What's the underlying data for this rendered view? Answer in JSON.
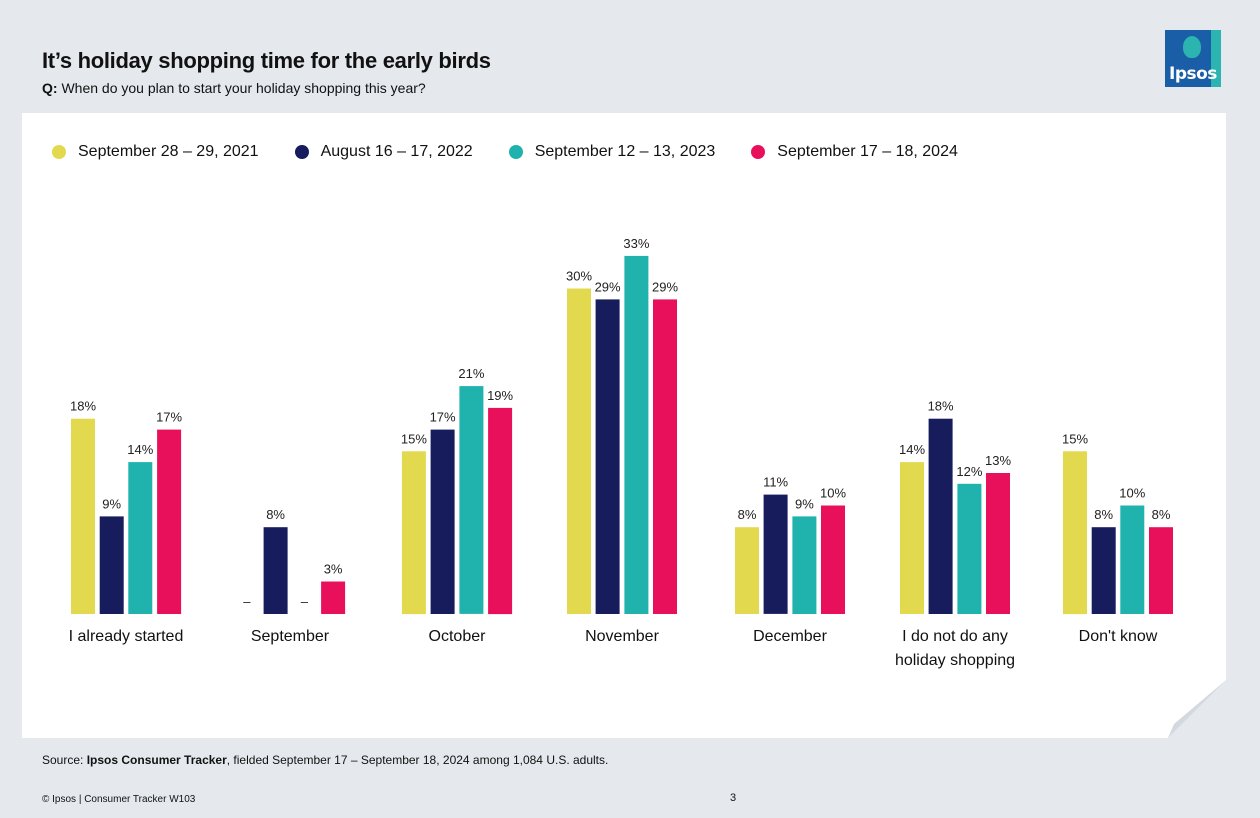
{
  "header": {
    "title": "It’s holiday shopping time for the early birds",
    "question_prefix": "Q:",
    "question": "When do you plan to start your holiday shopping this year?"
  },
  "logo": {
    "text": "Ipsos"
  },
  "colors": {
    "yellow": "#e3d94f",
    "navy": "#161c5c",
    "teal": "#20b2ad",
    "magenta": "#e8105b"
  },
  "chart_data": {
    "type": "bar",
    "title": "",
    "xlabel": "",
    "ylabel": "",
    "ylim": [
      0,
      33
    ],
    "grid": false,
    "legend_position": "top-left",
    "categories": [
      [
        "I already started"
      ],
      [
        "September"
      ],
      [
        "October"
      ],
      [
        "November"
      ],
      [
        "December"
      ],
      [
        "I do not do any",
        "holiday shopping"
      ],
      [
        "Don't know"
      ]
    ],
    "series": [
      {
        "name": "September 28 – 29, 2021",
        "color": "#e3d94f",
        "values": [
          18,
          null,
          15,
          30,
          8,
          14,
          15
        ],
        "labels": [
          "18%",
          "–",
          "15%",
          "30%",
          "8%",
          "14%",
          "15%"
        ]
      },
      {
        "name": "August 16 – 17, 2022",
        "color": "#161c5c",
        "values": [
          9,
          8,
          17,
          29,
          11,
          18,
          8
        ],
        "labels": [
          "9%",
          "8%",
          "17%",
          "29%",
          "11%",
          "18%",
          "8%"
        ]
      },
      {
        "name": "September 12 – 13, 2023",
        "color": "#20b2ad",
        "values": [
          14,
          null,
          21,
          33,
          9,
          12,
          10
        ],
        "labels": [
          "14%",
          "–",
          "21%",
          "33%",
          "9%",
          "12%",
          "10%"
        ]
      },
      {
        "name": "September 17 – 18, 2024",
        "color": "#e8105b",
        "values": [
          17,
          3,
          19,
          29,
          10,
          13,
          8
        ],
        "labels": [
          "17%",
          "3%",
          "19%",
          "29%",
          "10%",
          "13%",
          "8%"
        ]
      }
    ]
  },
  "source": {
    "prefix": "Source: ",
    "name": "Ipsos Consumer Tracker",
    "suffix": ", fielded September 17 – September 18, 2024 among 1,084 U.S. adults."
  },
  "footer": {
    "left": "© Ipsos | Consumer Tracker W103",
    "page": "3"
  }
}
